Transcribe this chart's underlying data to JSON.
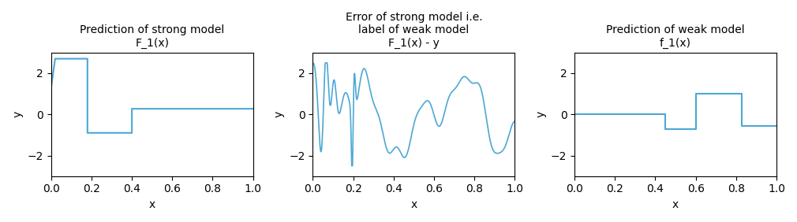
{
  "title1": "Prediction of strong model\nF_1(x)",
  "title2": "Error of strong model i.e.\nlabel of weak model\nF_1(x) - y",
  "title3": "Prediction of weak model\nf_1(x)",
  "xlabel": "x",
  "ylabel": "y",
  "ylim": [
    -3,
    3
  ],
  "xlim": [
    0.0,
    1.0
  ],
  "line_color": "#4ca8d4",
  "figsize": [
    10.1,
    2.82
  ],
  "dpi": 100,
  "plot1_segments": [
    [
      0.0,
      1.3
    ],
    [
      0.02,
      2.7
    ],
    [
      0.18,
      2.7
    ],
    [
      0.18,
      -0.9
    ],
    [
      0.4,
      -0.9
    ],
    [
      0.4,
      0.27
    ],
    [
      1.0,
      0.27
    ]
  ],
  "plot3_segments": [
    [
      0.0,
      0.0
    ],
    [
      0.45,
      0.0
    ],
    [
      0.45,
      -0.7
    ],
    [
      0.6,
      -0.7
    ],
    [
      0.6,
      1.0
    ],
    [
      0.83,
      1.0
    ],
    [
      0.83,
      -0.55
    ],
    [
      1.0,
      -0.55
    ]
  ],
  "error_n_points": 2000
}
